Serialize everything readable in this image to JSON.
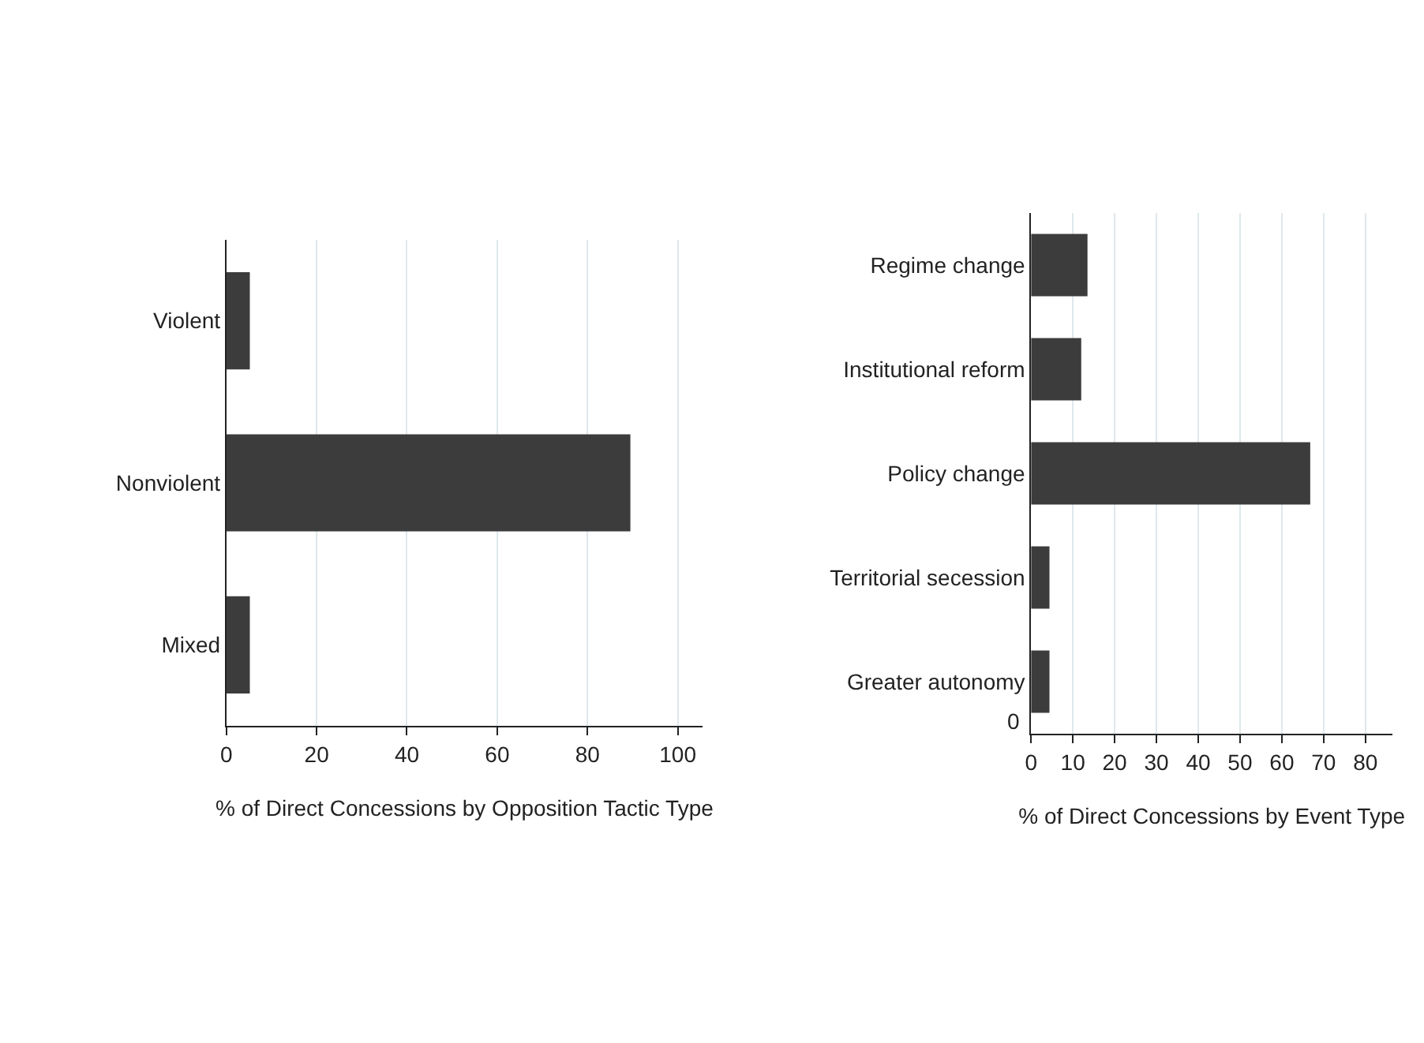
{
  "chart_data": [
    {
      "type": "bar",
      "orientation": "horizontal",
      "categories": [
        "Violent",
        "Nonviolent",
        "Mixed"
      ],
      "values": [
        5.2,
        89.5,
        5.2
      ],
      "color": "#3c3c3c",
      "xlabel": "% of Direct Concessions by Opposition Tactic Type",
      "xlim": [
        0,
        105.5
      ],
      "xticks": [
        0,
        20,
        40,
        60,
        80,
        100
      ],
      "grid": "x"
    },
    {
      "type": "bar",
      "orientation": "horizontal",
      "categories": [
        "Regime change",
        "Institutional reform",
        "Policy change",
        "Territorial secession",
        "Greater autonomy"
      ],
      "values": [
        13.5,
        12,
        66.8,
        4.4,
        4.4
      ],
      "color": "#3c3c3c",
      "xlabel": "% of Direct Concessions by Event Type",
      "xlim": [
        0,
        86.5
      ],
      "xticks": [
        0,
        10,
        20,
        30,
        40,
        50,
        60,
        70,
        80
      ],
      "grid": "x",
      "annotations": [
        "0"
      ]
    }
  ]
}
